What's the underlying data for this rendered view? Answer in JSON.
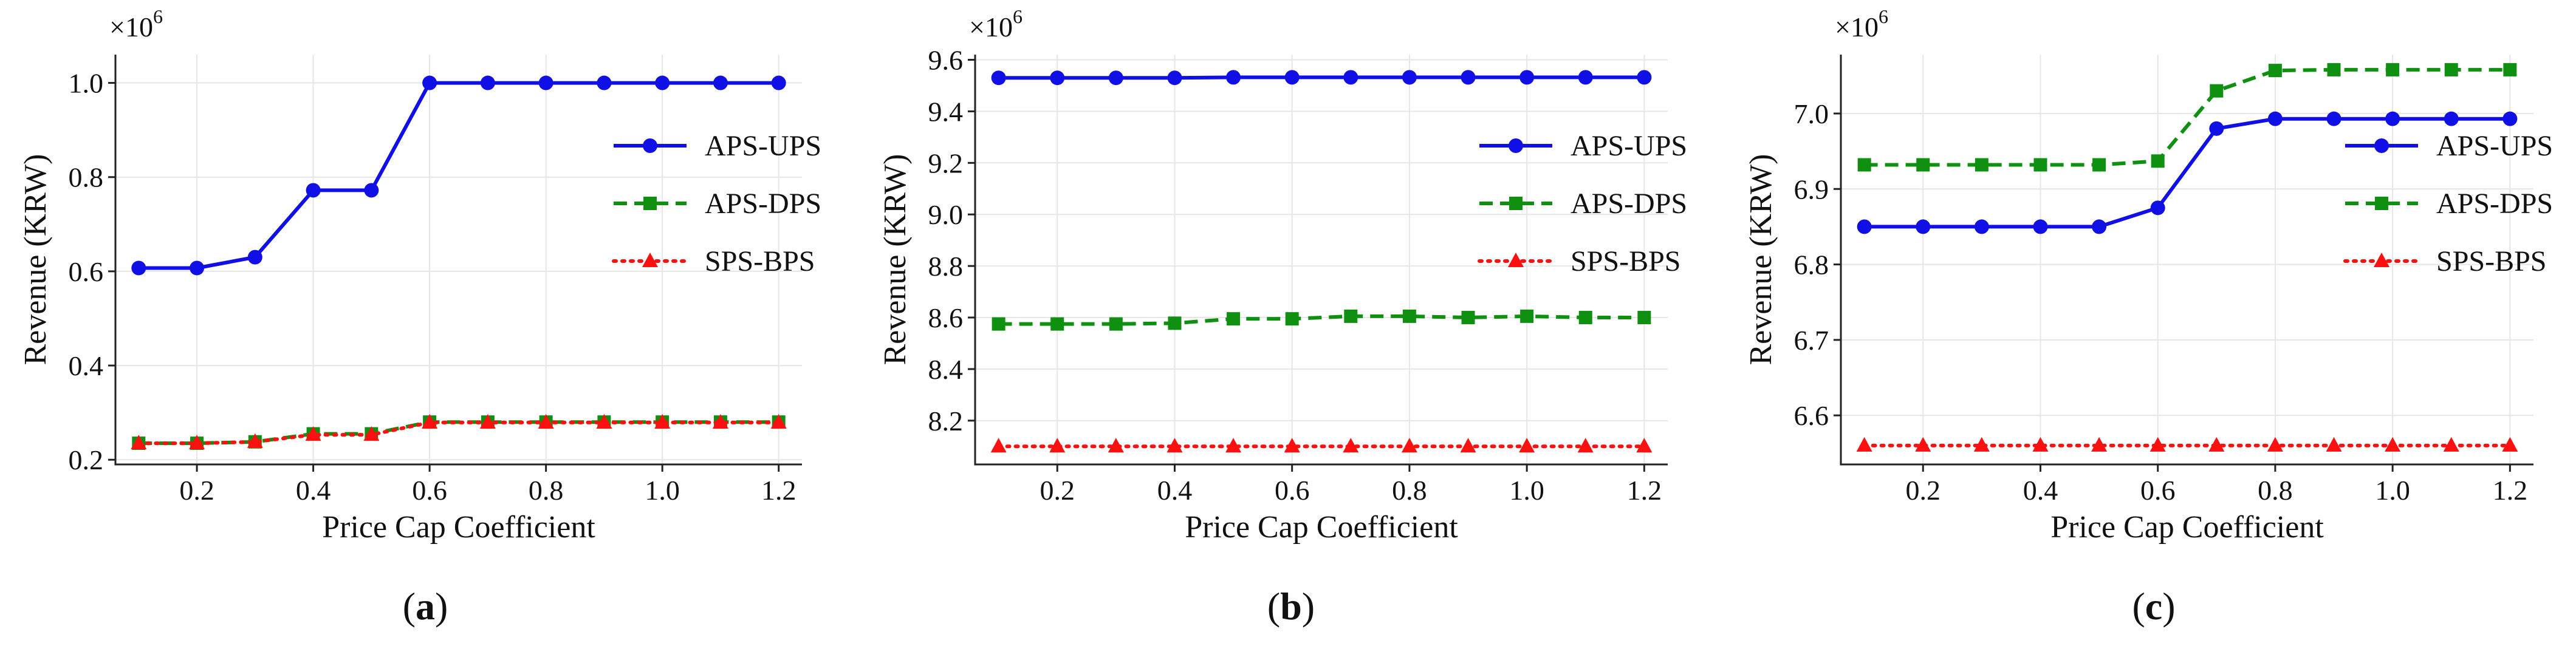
{
  "colors": {
    "aps_ups": "#1010e6",
    "aps_dps": "#109010",
    "sps_bps": "#ff1010"
  },
  "chart_data": [
    {
      "id": "a",
      "caption": "a",
      "type": "line",
      "xlabel": "Price Cap Coefficient",
      "ylabel": "Revenue (KRW)",
      "exponent_label": "×10",
      "exponent_power": "6",
      "x": [
        0.1,
        0.2,
        0.3,
        0.4,
        0.5,
        0.6,
        0.7,
        0.8,
        0.9,
        1.0,
        1.1,
        1.2
      ],
      "xticks": [
        0.2,
        0.4,
        0.6,
        0.8,
        1.0,
        1.2
      ],
      "xtick_labels": [
        "0.2",
        "0.4",
        "0.6",
        "0.8",
        "1.0",
        "1.2"
      ],
      "xlim": [
        0.06,
        1.24
      ],
      "ylim": [
        0.19,
        1.06
      ],
      "yticks": [
        0.2,
        0.4,
        0.6,
        0.8,
        1.0
      ],
      "ytick_labels": [
        "0.2",
        "0.4",
        "0.6",
        "0.8",
        "1.0"
      ],
      "series": [
        {
          "name": "APS-UPS",
          "style": "solid",
          "marker": "circle",
          "color_key": "aps_ups",
          "values": [
            0.607,
            0.607,
            0.63,
            0.772,
            0.772,
            1.0,
            1.0,
            1.0,
            1.0,
            1.0,
            1.0,
            1.0
          ]
        },
        {
          "name": "APS-DPS",
          "style": "dashed",
          "marker": "square",
          "color_key": "aps_dps",
          "values": [
            0.235,
            0.235,
            0.238,
            0.255,
            0.255,
            0.28,
            0.28,
            0.28,
            0.28,
            0.28,
            0.28,
            0.28
          ]
        },
        {
          "name": "SPS-BPS",
          "style": "dotted",
          "marker": "triangle",
          "color_key": "sps_bps",
          "values": [
            0.235,
            0.235,
            0.238,
            0.253,
            0.253,
            0.279,
            0.279,
            0.279,
            0.279,
            0.279,
            0.279,
            0.279
          ]
        }
      ],
      "legend_position": "center-right"
    },
    {
      "id": "b",
      "caption": "b",
      "type": "line",
      "xlabel": "Price Cap Coefficient",
      "ylabel": "Revenue (KRW)",
      "exponent_label": "×10",
      "exponent_power": "6",
      "x": [
        0.1,
        0.2,
        0.3,
        0.4,
        0.5,
        0.6,
        0.7,
        0.8,
        0.9,
        1.0,
        1.1,
        1.2
      ],
      "xticks": [
        0.2,
        0.4,
        0.6,
        0.8,
        1.0,
        1.2
      ],
      "xtick_labels": [
        "0.2",
        "0.4",
        "0.6",
        "0.8",
        "1.0",
        "1.2"
      ],
      "xlim": [
        0.06,
        1.24
      ],
      "ylim": [
        8.03,
        9.62
      ],
      "yticks": [
        8.2,
        8.4,
        8.6,
        8.8,
        9.0,
        9.2,
        9.4,
        9.6
      ],
      "ytick_labels": [
        "8.2",
        "8.4",
        "8.6",
        "8.8",
        "9.0",
        "9.2",
        "9.4",
        "9.6"
      ],
      "series": [
        {
          "name": "APS-UPS",
          "style": "solid",
          "marker": "circle",
          "color_key": "aps_ups",
          "values": [
            9.53,
            9.53,
            9.53,
            9.53,
            9.532,
            9.532,
            9.532,
            9.532,
            9.532,
            9.532,
            9.532,
            9.532
          ]
        },
        {
          "name": "APS-DPS",
          "style": "dashed",
          "marker": "square",
          "color_key": "aps_dps",
          "values": [
            8.575,
            8.575,
            8.575,
            8.578,
            8.595,
            8.595,
            8.605,
            8.605,
            8.6,
            8.605,
            8.6,
            8.6
          ]
        },
        {
          "name": "SPS-BPS",
          "style": "dotted",
          "marker": "triangle",
          "color_key": "sps_bps",
          "values": [
            8.1,
            8.1,
            8.1,
            8.1,
            8.1,
            8.1,
            8.1,
            8.1,
            8.1,
            8.1,
            8.1,
            8.1
          ]
        }
      ],
      "legend_position": "center-right"
    },
    {
      "id": "c",
      "caption": "c",
      "type": "line",
      "xlabel": "Price Cap Coefficient",
      "ylabel": "Revenue (KRW)",
      "exponent_label": "×10",
      "exponent_power": "6",
      "x": [
        0.1,
        0.2,
        0.3,
        0.4,
        0.5,
        0.6,
        0.7,
        0.8,
        0.9,
        1.0,
        1.1,
        1.2
      ],
      "xticks": [
        0.2,
        0.4,
        0.6,
        0.8,
        1.0,
        1.2
      ],
      "xtick_labels": [
        "0.2",
        "0.4",
        "0.6",
        "0.8",
        "1.0",
        "1.2"
      ],
      "xlim": [
        0.06,
        1.24
      ],
      "ylim": [
        6.535,
        7.078
      ],
      "yticks": [
        6.6,
        6.7,
        6.8,
        6.9,
        7.0
      ],
      "ytick_labels": [
        "6.6",
        "6.7",
        "6.8",
        "6.9",
        "7.0"
      ],
      "series": [
        {
          "name": "APS-UPS",
          "style": "solid",
          "marker": "circle",
          "color_key": "aps_ups",
          "values": [
            6.85,
            6.85,
            6.85,
            6.85,
            6.85,
            6.875,
            6.98,
            6.993,
            6.993,
            6.993,
            6.993,
            6.993
          ]
        },
        {
          "name": "APS-DPS",
          "style": "dashed",
          "marker": "square",
          "color_key": "aps_dps",
          "values": [
            6.932,
            6.932,
            6.932,
            6.932,
            6.932,
            6.937,
            7.03,
            7.057,
            7.058,
            7.058,
            7.058,
            7.058
          ]
        },
        {
          "name": "SPS-BPS",
          "style": "dotted",
          "marker": "triangle",
          "color_key": "sps_bps",
          "values": [
            6.56,
            6.56,
            6.56,
            6.56,
            6.56,
            6.56,
            6.56,
            6.56,
            6.56,
            6.56,
            6.56,
            6.56
          ]
        }
      ],
      "legend_position": "center-right"
    }
  ]
}
